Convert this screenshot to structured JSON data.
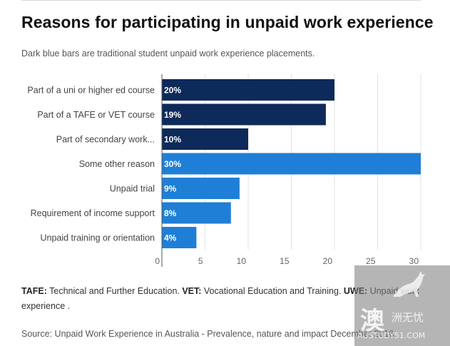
{
  "chart_data": {
    "type": "bar",
    "orientation": "horizontal",
    "title": "Reasons for participating in unpaid work experience",
    "subtitle": "Dark blue bars are traditional student unpaid work experience placements.",
    "categories": [
      "Part of a uni or higher ed course",
      "Part of a TAFE or VET course",
      "Part of secondary work...",
      "Some other reason",
      "Unpaid trial",
      "Requirement of income support",
      "Unpaid training or orientation"
    ],
    "values": [
      20,
      19,
      10,
      30,
      9,
      8,
      4
    ],
    "value_labels": [
      "20%",
      "19%",
      "10%",
      "30%",
      "9%",
      "8%",
      "4%"
    ],
    "groups": [
      "traditional",
      "traditional",
      "traditional",
      "other",
      "other",
      "other",
      "other"
    ],
    "colors": {
      "traditional": "#0d2a5a",
      "other": "#1f7fd6"
    },
    "xlim": [
      0,
      30
    ],
    "xticks": [
      0,
      5,
      10,
      15,
      20,
      25,
      30
    ],
    "xtick_labels": [
      "0",
      "5",
      "10",
      "15",
      "20",
      "25",
      "30"
    ],
    "grid": true
  },
  "notes": {
    "tafe_abbr": "TAFE:",
    "tafe_text": " Technical and Further Education.  ",
    "vet_abbr": "VET:",
    "vet_text": " Vocational Education and Training. ",
    "uwe_abbr": "UWE:",
    "uwe_text": " Unpaid work experience ."
  },
  "source": "Source: Unpaid Work Experience in Australia - Prevalence, nature and impact December 2016",
  "watermark": {
    "glyph": "澳",
    "text": "洲无忧",
    "url": "AUSTUDY51.COM"
  }
}
